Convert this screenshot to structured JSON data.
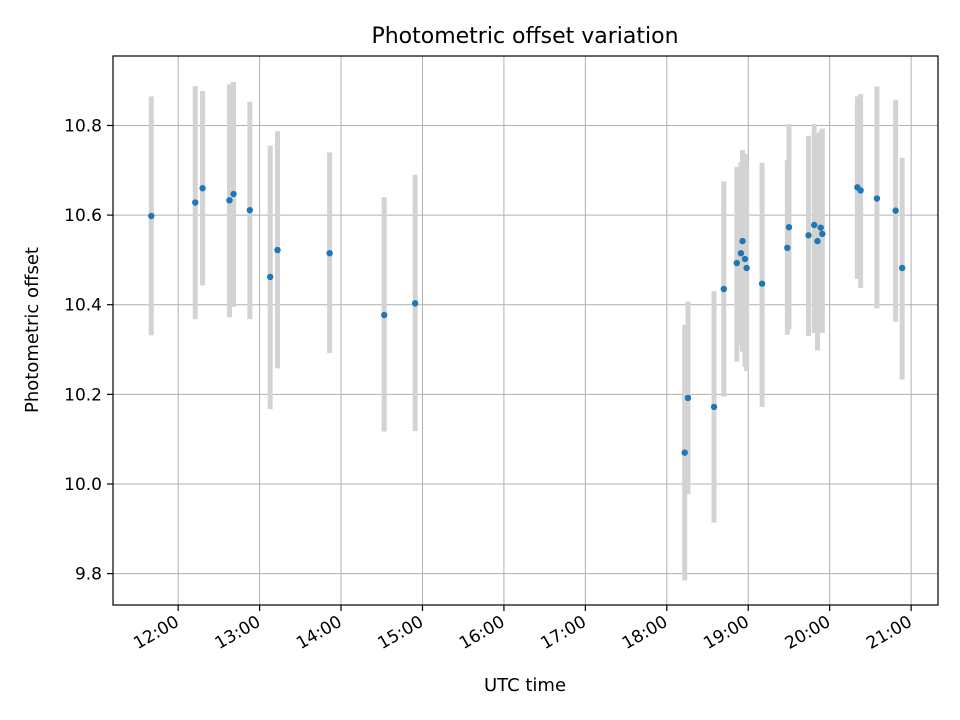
{
  "chart_data": {
    "type": "scatter",
    "title": "Photometric offset variation",
    "xlabel": "UTC time",
    "ylabel": "Photometric offset",
    "xlim": [
      11.2,
      21.33
    ],
    "ylim": [
      9.73,
      10.955
    ],
    "grid": true,
    "x_ticks": [
      {
        "value": 12,
        "label": "12:00"
      },
      {
        "value": 13,
        "label": "13:00"
      },
      {
        "value": 14,
        "label": "14:00"
      },
      {
        "value": 15,
        "label": "15:00"
      },
      {
        "value": 16,
        "label": "16:00"
      },
      {
        "value": 17,
        "label": "17:00"
      },
      {
        "value": 18,
        "label": "18:00"
      },
      {
        "value": 19,
        "label": "19:00"
      },
      {
        "value": 20,
        "label": "20:00"
      },
      {
        "value": 21,
        "label": "21:00"
      }
    ],
    "y_ticks": [
      {
        "value": 9.8,
        "label": "9.8"
      },
      {
        "value": 10.0,
        "label": "10.0"
      },
      {
        "value": 10.2,
        "label": "10.2"
      },
      {
        "value": 10.4,
        "label": "10.4"
      },
      {
        "value": 10.6,
        "label": "10.6"
      },
      {
        "value": 10.8,
        "label": "10.8"
      }
    ],
    "marker_color": "#1f77b4",
    "errorbar_color": "#d3d3d3",
    "series": [
      {
        "name": "offset",
        "x": [
          11.67,
          12.21,
          12.3,
          12.63,
          12.68,
          12.88,
          13.13,
          13.22,
          13.86,
          14.53,
          14.91,
          18.22,
          18.26,
          18.58,
          18.7,
          18.86,
          18.91,
          18.93,
          18.96,
          18.98,
          19.17,
          19.48,
          19.5,
          19.74,
          19.81,
          19.85,
          19.89,
          19.91,
          20.34,
          20.38,
          20.58,
          20.81,
          20.89
        ],
        "y": [
          10.598,
          10.628,
          10.66,
          10.633,
          10.647,
          10.611,
          10.462,
          10.522,
          10.515,
          10.377,
          10.403,
          10.07,
          10.192,
          10.172,
          10.435,
          10.493,
          10.515,
          10.542,
          10.502,
          10.482,
          10.447,
          10.527,
          10.573,
          10.555,
          10.578,
          10.542,
          10.572,
          10.558,
          10.662,
          10.655,
          10.637,
          10.61,
          10.482
        ],
        "y_low": [
          10.332,
          10.368,
          10.443,
          10.372,
          10.395,
          10.368,
          10.167,
          10.258,
          10.292,
          10.117,
          10.118,
          9.785,
          9.977,
          9.914,
          10.195,
          10.273,
          10.31,
          10.295,
          10.262,
          10.252,
          10.172,
          10.333,
          10.345,
          10.33,
          10.337,
          10.298,
          10.34,
          10.337,
          10.458,
          10.437,
          10.392,
          10.362,
          10.233
        ],
        "y_high": [
          10.865,
          10.888,
          10.877,
          10.892,
          10.897,
          10.853,
          10.755,
          10.787,
          10.74,
          10.64,
          10.69,
          10.355,
          10.407,
          10.43,
          10.675,
          10.708,
          10.718,
          10.745,
          10.737,
          10.71,
          10.717,
          10.722,
          10.803,
          10.777,
          10.803,
          10.783,
          10.788,
          10.793,
          10.865,
          10.87,
          10.887,
          10.857,
          10.728
        ]
      }
    ]
  }
}
